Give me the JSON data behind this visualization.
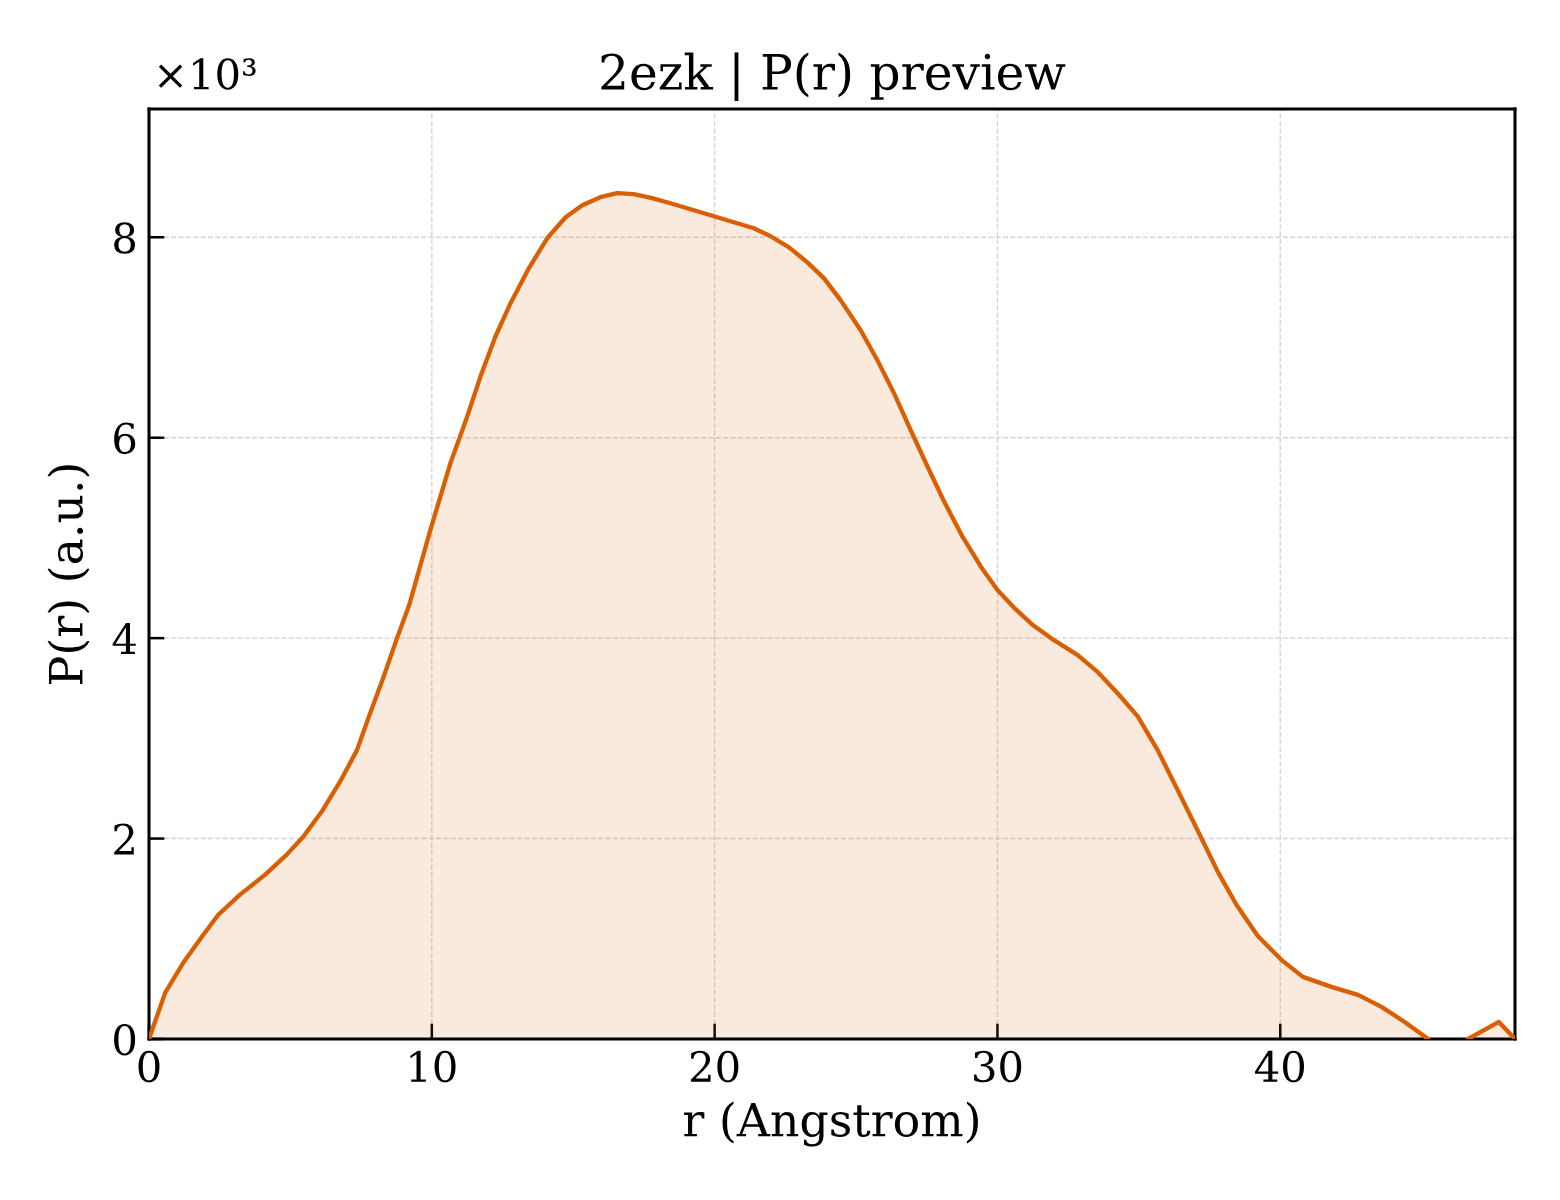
{
  "chart_data": {
    "type": "area",
    "title": "2ezk | P(r) preview",
    "xlabel": "r (Angstrom)",
    "ylabel": "P(r) (a.u.)",
    "annotations": [
      "×10³"
    ],
    "color": "#d95f02",
    "x": [
      0,
      0.57,
      1.21,
      1.87,
      2.45,
      3.22,
      4.11,
      4.87,
      5.46,
      6.11,
      6.76,
      7.35,
      7.82,
      8.29,
      8.77,
      9.2,
      9.95,
      10.65,
      11.25,
      11.72,
      12.25,
      12.78,
      13.43,
      14.08,
      14.73,
      15.32,
      15.96,
      16.55,
      17.14,
      17.79,
      18.44,
      19.15,
      19.86,
      20.68,
      21.39,
      21.98,
      22.63,
      23.28,
      23.87,
      24.46,
      25.17,
      25.76,
      26.35,
      26.94,
      27.53,
      28.12,
      28.77,
      29.42,
      30.0,
      30.6,
      31.25,
      32.0,
      32.84,
      33.55,
      34.25,
      34.96,
      35.67,
      36.38,
      37.08,
      37.79,
      38.45,
      39.2,
      40.04,
      40.8,
      41.81,
      42.75,
      43.58,
      44.4,
      45.23,
      45.9,
      46.64,
      47.73,
      48.3
    ],
    "values": [
      0,
      0.46,
      0.76,
      1.02,
      1.24,
      1.44,
      1.64,
      1.84,
      2.02,
      2.27,
      2.57,
      2.88,
      3.25,
      3.61,
      4.0,
      4.33,
      5.08,
      5.74,
      6.21,
      6.61,
      7.01,
      7.34,
      7.69,
      7.99,
      8.2,
      8.32,
      8.4,
      8.44,
      8.43,
      8.39,
      8.34,
      8.28,
      8.22,
      8.15,
      8.09,
      8.01,
      7.9,
      7.75,
      7.59,
      7.37,
      7.07,
      6.77,
      6.44,
      6.07,
      5.71,
      5.36,
      5.01,
      4.71,
      4.48,
      4.3,
      4.13,
      3.98,
      3.83,
      3.66,
      3.45,
      3.22,
      2.88,
      2.48,
      2.08,
      1.67,
      1.34,
      1.03,
      0.79,
      0.62,
      0.52,
      0.44,
      0.32,
      0.17,
      0,
      null,
      0,
      0.17,
      0
    ],
    "xlim": [
      0,
      48.3
    ],
    "ylim": [
      0,
      9.28
    ],
    "xticks": [
      0,
      10,
      20,
      30,
      40
    ],
    "yticks": [
      0,
      2,
      4,
      6,
      8
    ],
    "grid": true
  }
}
